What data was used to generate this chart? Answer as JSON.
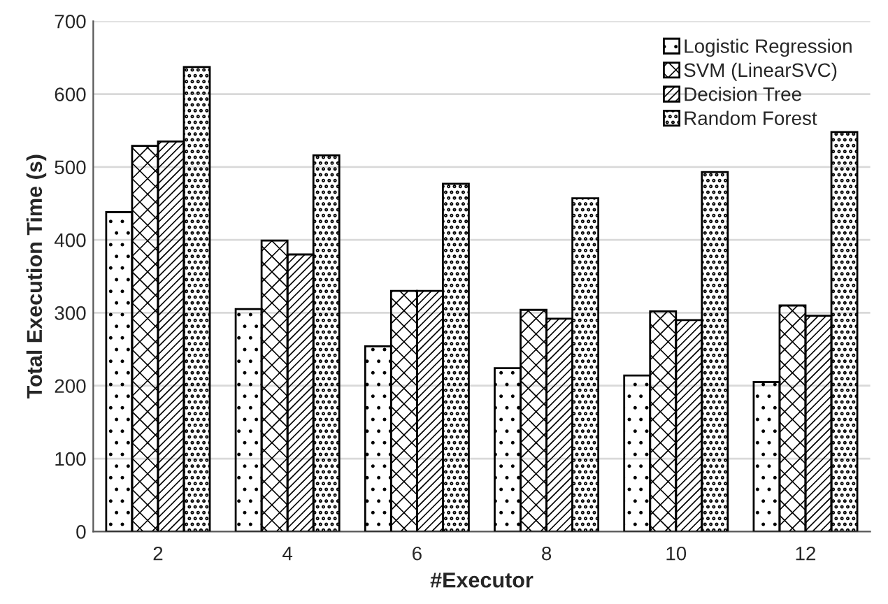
{
  "chart_data": {
    "type": "bar",
    "xlabel": "#Executor",
    "ylabel": "Total Execution Time (s)",
    "categories": [
      "2",
      "4",
      "6",
      "8",
      "10",
      "12"
    ],
    "series": [
      {
        "name": "Logistic Regression",
        "color": "#000000",
        "values": [
          438,
          305,
          254,
          224,
          214,
          205
        ]
      },
      {
        "name": "SVM (LinearSVC)",
        "color": "#000000",
        "values": [
          529,
          399,
          330,
          304,
          302,
          310
        ]
      },
      {
        "name": "Decision Tree",
        "color": "#000000",
        "values": [
          535,
          380,
          330,
          292,
          290,
          296
        ]
      },
      {
        "name": "Random Forest",
        "color": "#000000",
        "values": [
          637,
          516,
          477,
          457,
          493,
          548
        ]
      }
    ],
    "ylim": [
      0,
      700
    ],
    "yticks": [
      0,
      100,
      200,
      300,
      400,
      500,
      600,
      700
    ],
    "grid": "y",
    "legend": "top right"
  }
}
